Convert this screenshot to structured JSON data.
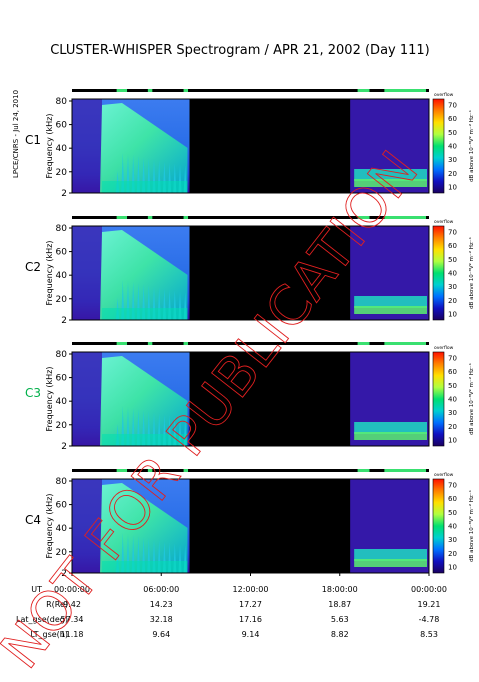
{
  "title": "CLUSTER-WHISPER Spectrogram / APR 21, 2002 (Day 111)",
  "side_credit": "LPCE/CNRS - Jul 24, 2010",
  "watermark": "NOT FOR PUBLICATION",
  "chart_data": {
    "type": "heatmap",
    "x_axis": {
      "quantity": "UT",
      "range": [
        "00:00:00",
        "24:00:00"
      ],
      "ticks": [
        "00:00:00",
        "06:00:00",
        "12:00:00",
        "18:00:00",
        "00:00:00"
      ]
    },
    "y_axis": {
      "label": "Frequency (kHz)",
      "range": [
        2,
        80
      ],
      "ticks": [
        2,
        20,
        40,
        60,
        80
      ]
    },
    "colorbar": {
      "label": "dB above 10⁻⁸V² m⁻² Hz⁻¹",
      "range": [
        10,
        70
      ],
      "ticks": [
        10,
        20,
        30,
        40,
        50,
        60,
        70
      ],
      "colors": [
        "#1a0060",
        "#1010c0",
        "#0070ff",
        "#00d0d0",
        "#00e070",
        "#b0ff40",
        "#ffe000",
        "#ff8000",
        "#ff1000"
      ],
      "top_label": "overflow"
    },
    "data_gap_hours": [
      7.9,
      18.7
    ],
    "panels": [
      {
        "name": "C1",
        "color": "#000000"
      },
      {
        "name": "C2",
        "color": "#000000"
      },
      {
        "name": "C3",
        "color": "#00b04a"
      },
      {
        "name": "C4",
        "color": "#000000"
      }
    ],
    "ephemeris": {
      "rows": [
        {
          "label": "R(Re)",
          "values": [
            "9.42",
            "14.23",
            "17.27",
            "18.87",
            "19.21"
          ]
        },
        {
          "label": "Lat_gse(deg)",
          "values": [
            "57.34",
            "32.18",
            "17.16",
            "5.63",
            "-4.78"
          ]
        },
        {
          "label": "LT_gse(h)",
          "values": [
            "11.18",
            "9.64",
            "9.14",
            "8.82",
            "8.53"
          ]
        }
      ]
    }
  }
}
